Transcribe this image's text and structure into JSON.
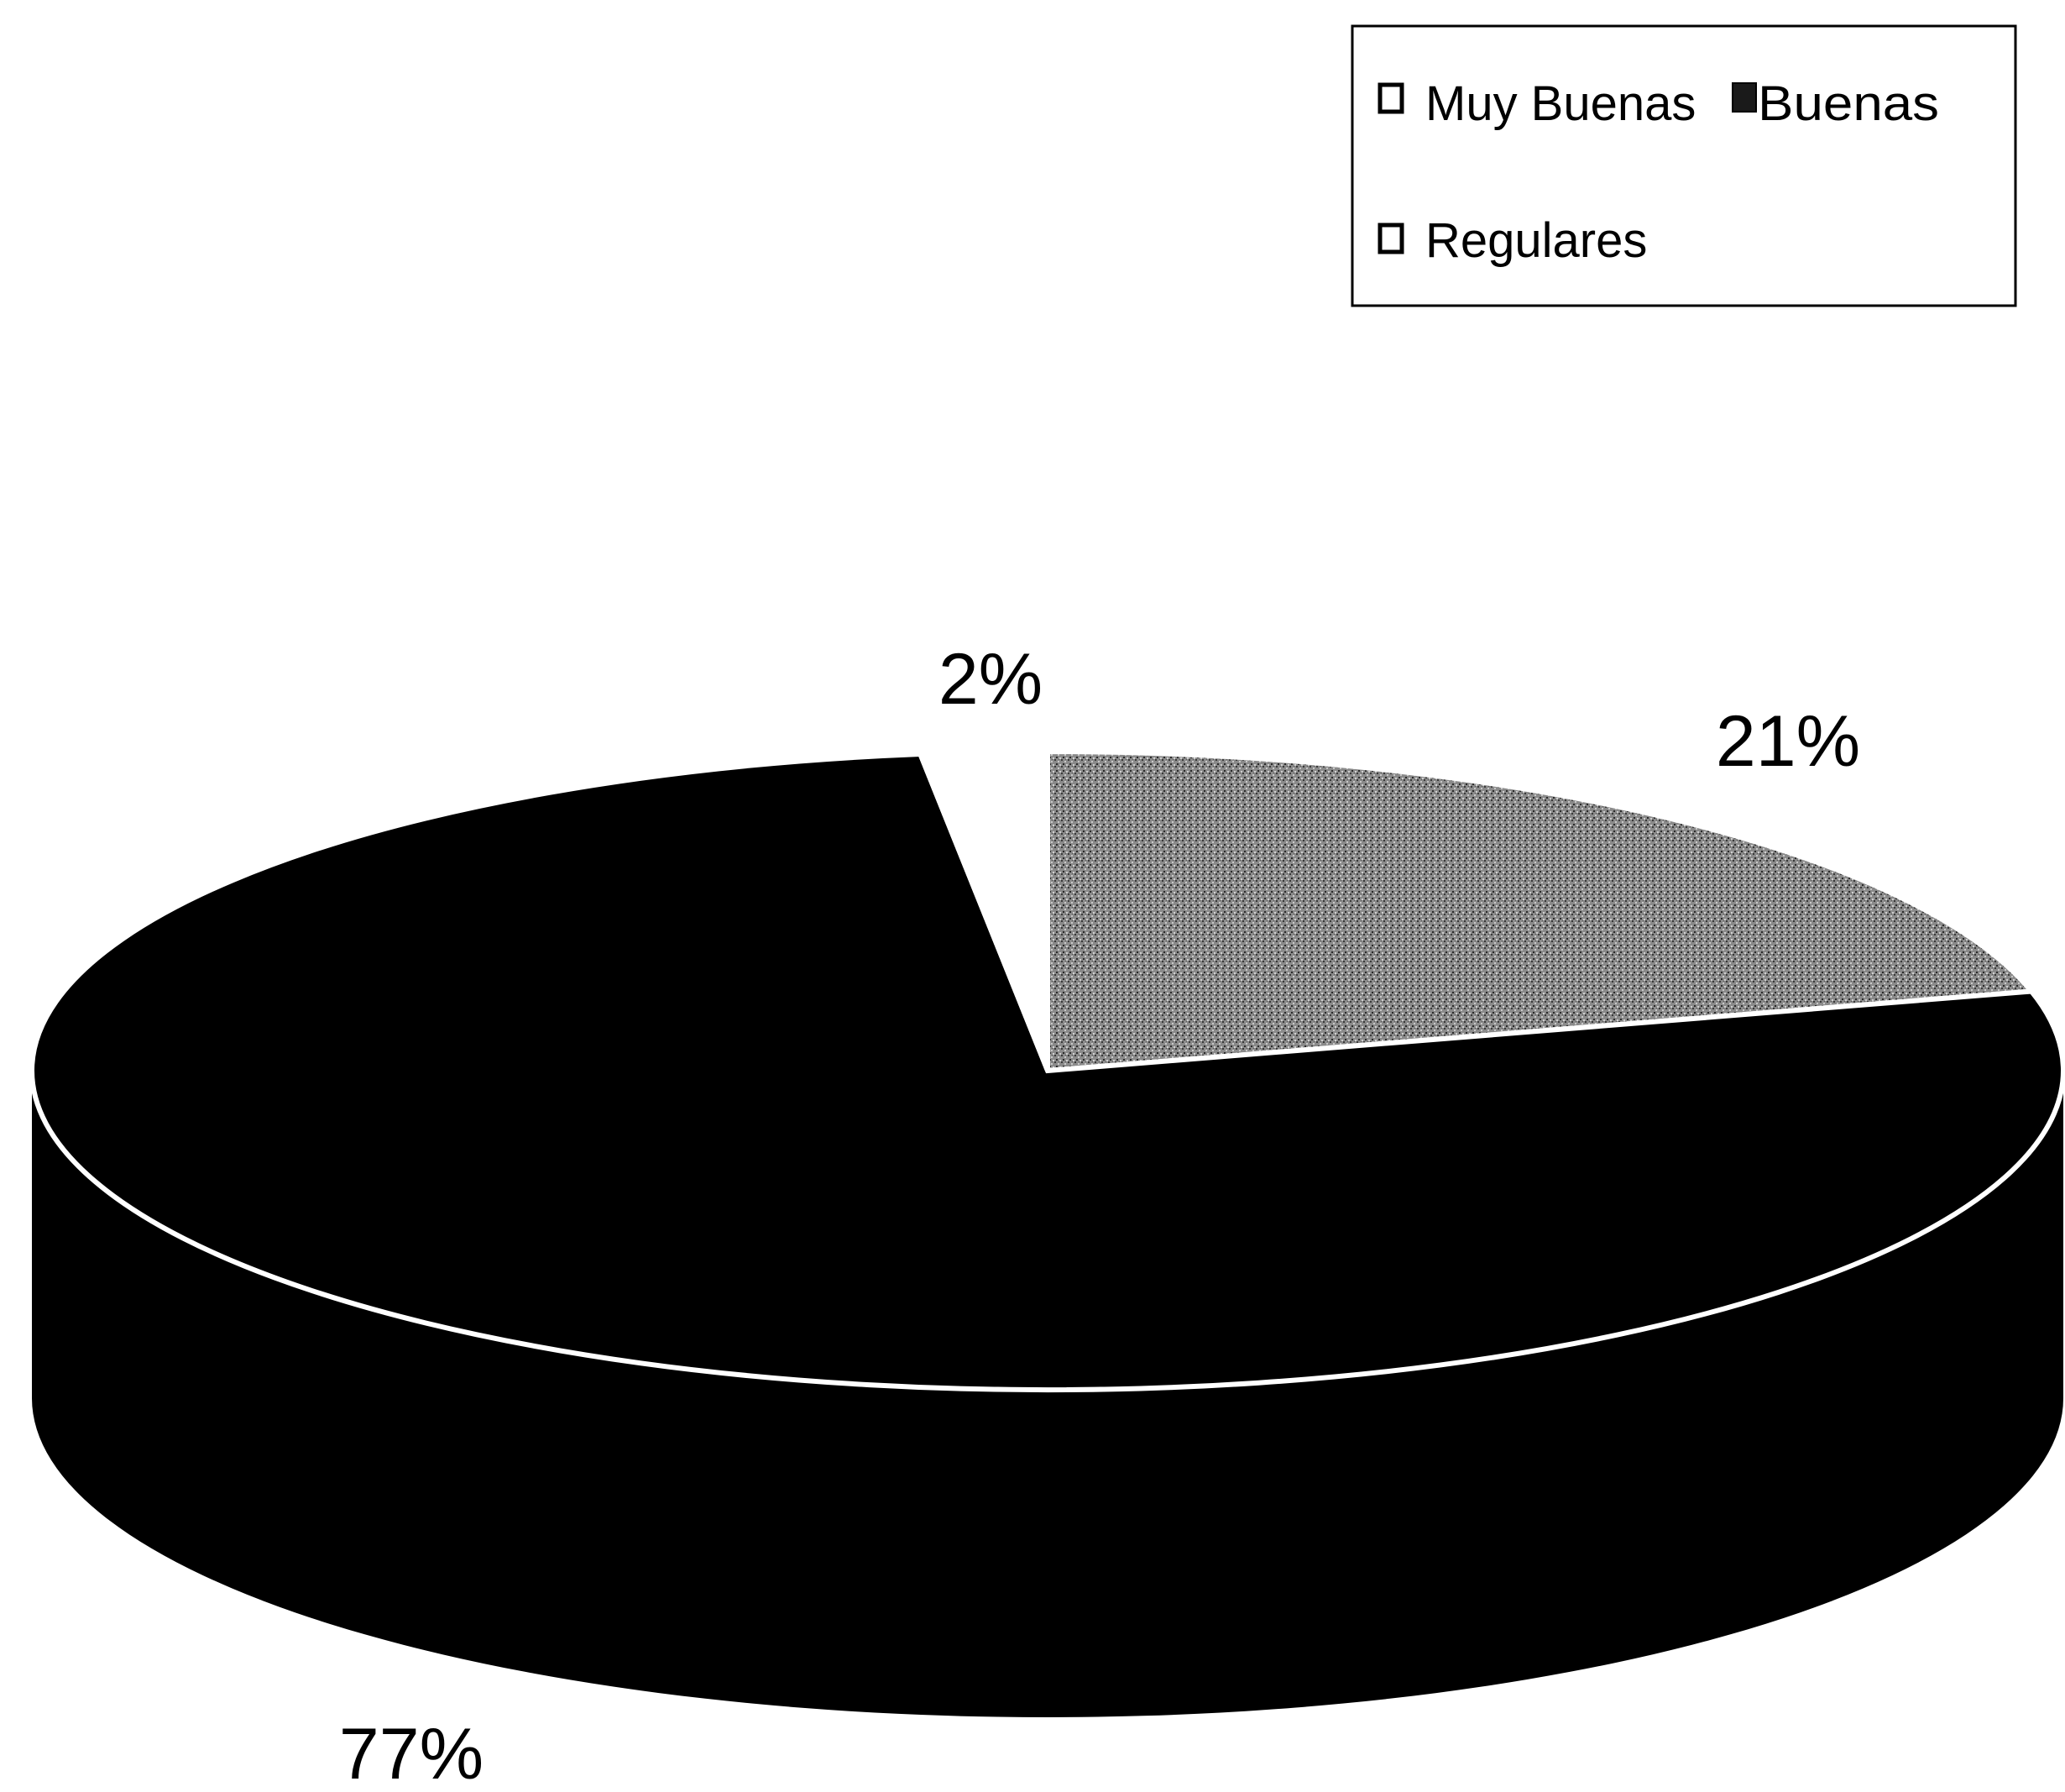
{
  "chart_data": {
    "type": "pie",
    "style": "3d",
    "title": "",
    "slices": [
      {
        "label": "Muy Buenas",
        "value": 21,
        "value_label": "21%",
        "color": "#8a8a8a"
      },
      {
        "label": "Buenas",
        "value": 77,
        "value_label": "77%",
        "color": "#000000"
      },
      {
        "label": "Regulares",
        "value": 2,
        "value_label": "2%",
        "color": "#ffffff"
      }
    ],
    "legend": {
      "placement": "top-right",
      "entries": [
        "Muy Buenas",
        "Buenas",
        "Regulares"
      ]
    }
  }
}
